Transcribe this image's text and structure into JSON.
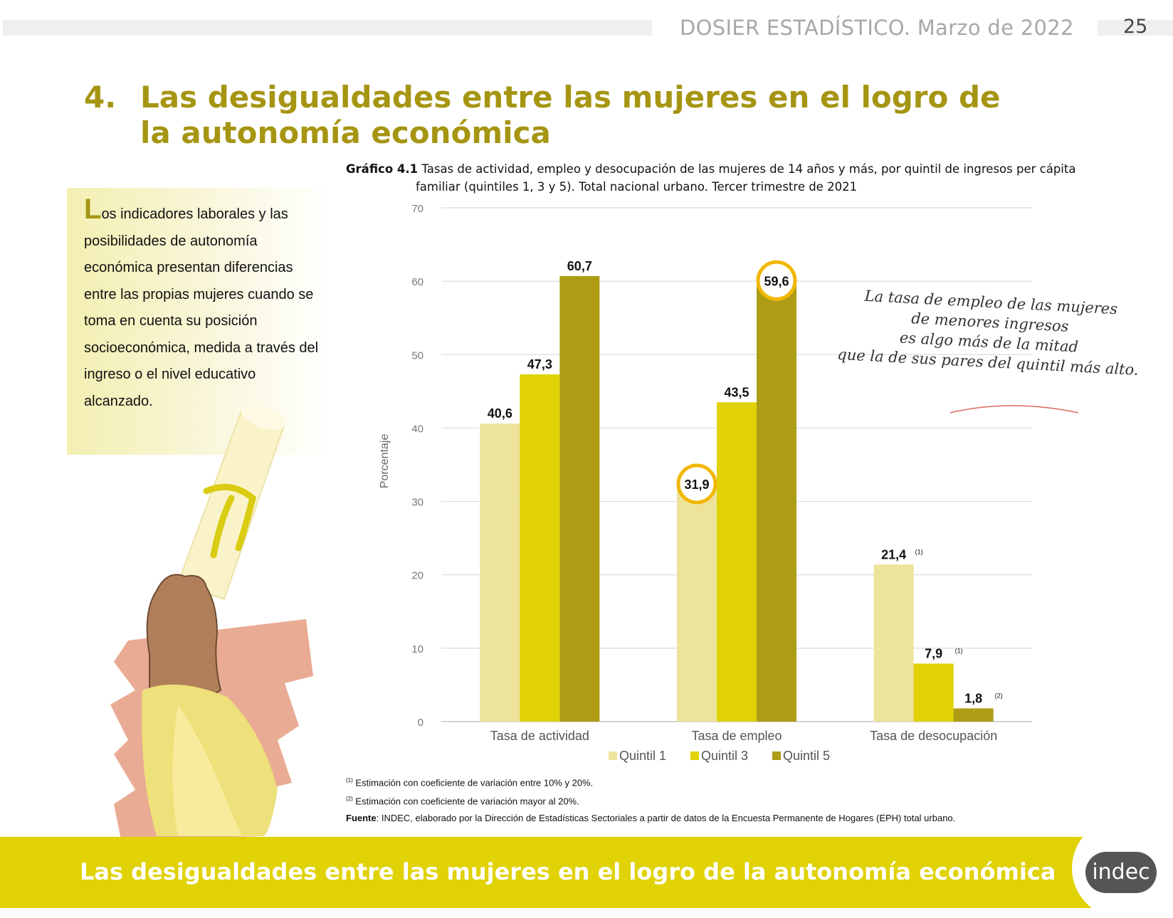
{
  "header": {
    "title": "DOSIER ESTADÍSTICO. Marzo de 2022",
    "page_number": "25"
  },
  "section": {
    "number": "4.",
    "title": "Las desigualdades entre las mujeres en el logro de la autonomía económica"
  },
  "intro": {
    "dropcap": "L",
    "text": "os indicadores laborales y las posibilidades de autonomía económica presentan diferencias entre las propias mujeres cuando se toma en cuenta su posición socioeconómica, medida a través del ingreso o el nivel educativo alcanzado."
  },
  "chart_caption": {
    "label": "Gráfico 4.1",
    "line1": "Tasas de actividad, empleo y desocupación de las mujeres de 14 años y más, por quintil de ingresos per cápita",
    "line2": "familiar (quintiles 1, 3 y 5). Total nacional urbano. Tercer trimestre de 2021"
  },
  "chart_data": {
    "type": "bar",
    "categories": [
      "Tasa de actividad",
      "Tasa de empleo",
      "Tasa de desocupación"
    ],
    "series": [
      {
        "name": "Quintil 1",
        "color": "#ede39a",
        "values": [
          40.6,
          31.9,
          21.4
        ],
        "labels": [
          "40,6",
          "31,9",
          "21,4"
        ],
        "notes": [
          "",
          "",
          "(1)"
        ]
      },
      {
        "name": "Quintil 3",
        "color": "#e0d204",
        "values": [
          47.3,
          43.5,
          7.9
        ],
        "labels": [
          "47,3",
          "43,5",
          "7,9"
        ],
        "notes": [
          "",
          "",
          "(1)"
        ]
      },
      {
        "name": "Quintil 5",
        "color": "#ad9c14",
        "values": [
          60.7,
          59.6,
          1.8
        ],
        "labels": [
          "60,7",
          "59,6",
          "1,8"
        ],
        "notes": [
          "",
          "",
          "(2)"
        ]
      }
    ],
    "ylabel": "Porcentaje",
    "ylim": [
      0,
      70
    ],
    "yticks": [
      0,
      10,
      20,
      30,
      40,
      50,
      60,
      70
    ],
    "grid": true,
    "legend": "bottom",
    "highlighted": [
      "31,9",
      "59,6"
    ],
    "annotation": [
      "La tasa de empleo de las mujeres",
      "de menores ingresos",
      "es algo más de la mitad",
      "que la de sus pares del quintil más alto."
    ]
  },
  "footnotes": {
    "note1_mark": "(1)",
    "note1": "Estimación con coeficiente de variación entre 10% y 20%.",
    "note2_mark": "(2)",
    "note2": "Estimación con coeficiente de variación mayor al 20%.",
    "source_label": "Fuente",
    "source": ": INDEC, elaborado por la Dirección de Estadísticas Sectoriales a partir de datos de la Encuesta Permanente de Hogares (EPH) total urbano."
  },
  "footer": {
    "title": "Las desigualdades entre las mujeres en el logro de la autonomía económica",
    "logo_text": "indec"
  },
  "colors": {
    "accent": "#a69512",
    "band": "#e0d204"
  }
}
